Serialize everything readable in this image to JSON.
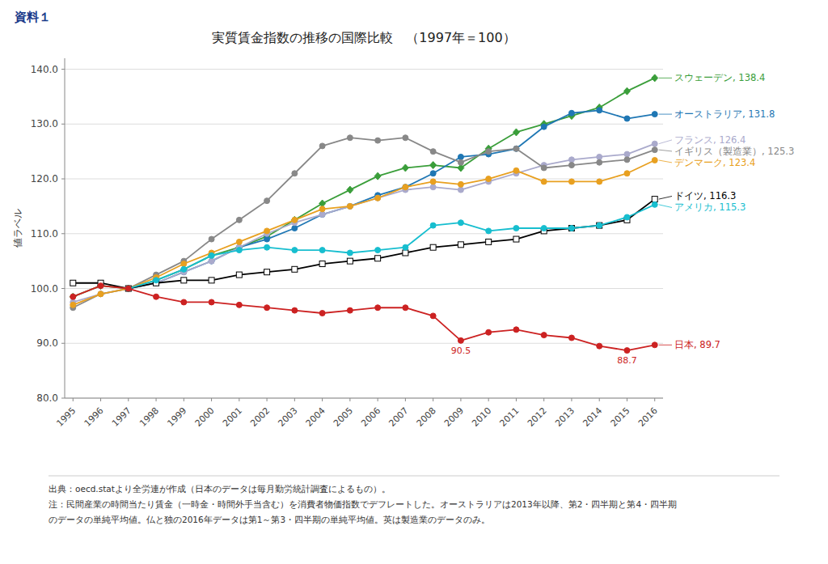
{
  "chart_data": {
    "type": "line",
    "title": "実質賃金指数の推移の国際比較　（1997年＝100）",
    "subtitle": "資料１",
    "y_label": "値ラベル",
    "x": [
      1995,
      1996,
      1997,
      1998,
      1999,
      2000,
      2001,
      2002,
      2003,
      2004,
      2005,
      2006,
      2007,
      2008,
      2009,
      2010,
      2011,
      2012,
      2013,
      2014,
      2015,
      2016
    ],
    "series": [
      {
        "name": "スウェーデン, 138.4",
        "color": "#3a9e3a",
        "marker": "diamond",
        "values": [
          98.5,
          100.5,
          100.0,
          101.5,
          103.5,
          106.0,
          107.5,
          109.5,
          112.5,
          115.5,
          118.0,
          120.5,
          122.0,
          122.5,
          122.0,
          125.5,
          128.5,
          130.0,
          131.5,
          133.0,
          136.0,
          138.4
        ]
      },
      {
        "name": "オーストラリア, 131.8",
        "color": "#1f77b4",
        "marker": "circle",
        "values": [
          null,
          null,
          100.0,
          101.0,
          103.0,
          105.0,
          107.5,
          109.0,
          111.0,
          113.5,
          115.0,
          117.0,
          118.5,
          121.0,
          124.0,
          124.5,
          125.5,
          129.5,
          132.0,
          132.5,
          131.0,
          131.8
        ]
      },
      {
        "name": "フランス, 126.4",
        "color": "#aaaacc",
        "marker": "circle",
        "values": [
          97.5,
          99.0,
          100.0,
          101.0,
          103.0,
          105.0,
          107.5,
          110.0,
          112.0,
          113.5,
          115.0,
          116.5,
          118.0,
          118.5,
          118.0,
          119.5,
          121.0,
          122.5,
          123.5,
          124.0,
          124.5,
          126.4
        ]
      },
      {
        "name": "イギリス（製造業）, 125.3",
        "color": "#888888",
        "marker": "circle",
        "values": [
          96.5,
          99.0,
          100.0,
          102.5,
          105.0,
          109.0,
          112.5,
          116.0,
          121.0,
          126.0,
          127.5,
          127.0,
          127.5,
          125.0,
          123.0,
          125.0,
          125.5,
          122.0,
          122.5,
          123.0,
          123.5,
          125.3
        ]
      },
      {
        "name": "デンマーク, 123.4",
        "color": "#e8a020",
        "marker": "circle",
        "values": [
          97.0,
          99.0,
          100.0,
          102.0,
          104.5,
          106.5,
          108.5,
          110.5,
          112.5,
          114.5,
          115.0,
          116.5,
          118.5,
          119.5,
          119.0,
          120.0,
          121.5,
          119.5,
          119.5,
          119.5,
          121.0,
          123.4
        ]
      },
      {
        "name": "ドイツ, 116.3",
        "color": "#000000",
        "marker": "open-square",
        "values": [
          101.0,
          101.0,
          100.0,
          101.0,
          101.5,
          101.5,
          102.5,
          103.0,
          103.5,
          104.5,
          105.0,
          105.5,
          106.5,
          107.5,
          108.0,
          108.5,
          109.0,
          110.5,
          111.0,
          111.5,
          112.5,
          116.3
        ]
      },
      {
        "name": "アメリカ, 115.3",
        "color": "#17becf",
        "marker": "circle",
        "values": [
          null,
          null,
          100.0,
          101.5,
          103.5,
          106.0,
          107.0,
          107.5,
          107.0,
          107.0,
          106.5,
          107.0,
          107.5,
          111.5,
          112.0,
          110.5,
          111.0,
          111.0,
          111.0,
          111.5,
          113.0,
          115.3
        ]
      },
      {
        "name": "日本, 89.7",
        "color": "#cc2222",
        "marker": "circle",
        "values": [
          98.5,
          100.5,
          100.0,
          98.5,
          97.5,
          97.5,
          97.0,
          96.5,
          96.0,
          95.5,
          96.0,
          96.5,
          96.5,
          95.0,
          90.5,
          92.0,
          92.5,
          91.5,
          91.0,
          89.5,
          88.7,
          89.7
        ]
      }
    ],
    "annotations": [
      {
        "text": "90.5",
        "x": 2009,
        "y": 90.5
      },
      {
        "text": "88.7",
        "x": 2015,
        "y": 88.7
      }
    ],
    "xlim": [
      1994.7,
      2016.3
    ],
    "xticks": [
      1995,
      1996,
      1997,
      1998,
      1999,
      2000,
      2001,
      2002,
      2003,
      2004,
      2005,
      2006,
      2007,
      2008,
      2009,
      2010,
      2011,
      2012,
      2013,
      2014,
      2015,
      2016
    ],
    "ylim": [
      80.0,
      142.0
    ],
    "yticks": [
      {
        "value": 80.0,
        "label": "80.0"
      },
      {
        "value": 90.0,
        "label": "90.0"
      },
      {
        "value": 100.0,
        "label": "100.0"
      },
      {
        "value": 110.0,
        "label": "110.0"
      },
      {
        "value": 120.0,
        "label": "120.0"
      },
      {
        "value": 130.0,
        "label": "130.0"
      },
      {
        "value": 140.0,
        "label": "140.0"
      }
    ],
    "grid": true,
    "footnote": [
      "出典：oecd.statより全労連が作成（日本のデータは毎月勤労統計調査によるもの）。",
      "注：民間産業の時間当たり賃金（一時金・時間外手当含む）を消費者物価指数でデフレートした。オーストラリアは2013年以降、第2・四半期と第4・四半期",
      "のデータの単純平均値。仏と独の2016年データは第1～第3・四半期の単純平均値。英は製造業のデータのみ。"
    ]
  }
}
